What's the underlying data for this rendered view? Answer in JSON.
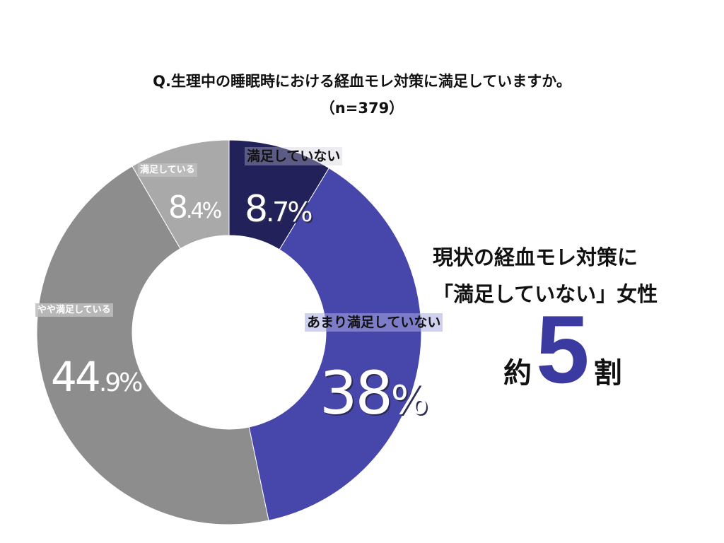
{
  "title": {
    "line1": "Q.生理中の睡眠時における経血モレ対策に満足していますか。",
    "line2": "（n=379）"
  },
  "chart_data": {
    "type": "pie",
    "variant": "donut",
    "slices": [
      {
        "label": "満足していない",
        "value": 8.7,
        "display_int": "8",
        "display_dec": ".7%",
        "color": "#22215a"
      },
      {
        "label": "あまり満足していない",
        "value": 38,
        "display_int": "38",
        "display_dec": "%",
        "color": "#4646ab"
      },
      {
        "label": "やや満足している",
        "value": 44.9,
        "display_int": "44",
        "display_dec": ".9%",
        "color": "#8d8d8d"
      },
      {
        "label": "満足している",
        "value": 8.4,
        "display_int": "8",
        "display_dec": ".4%",
        "color": "#a9a9a9"
      }
    ]
  },
  "headline": {
    "line1": "現状の経血モレ対策に",
    "line2": "「満足していない」女性"
  },
  "conclusion": {
    "prefix": "約",
    "number": "5",
    "suffix": "割"
  }
}
